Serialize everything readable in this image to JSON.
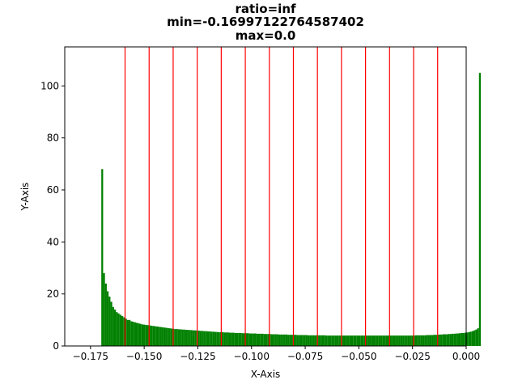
{
  "chart_data": {
    "type": "bar",
    "title_lines": [
      "ratio=inf",
      "min=-0.16997122764587402",
      "max=0.0"
    ],
    "xlabel": "X-Axis",
    "ylabel": "Y-Axis",
    "xlim": [
      -0.187,
      0.0
    ],
    "ylim": [
      0,
      115
    ],
    "x_ticks": [
      -0.175,
      -0.15,
      -0.125,
      -0.1,
      -0.075,
      -0.05,
      -0.025,
      0.0
    ],
    "x_tick_labels": [
      "−0.175",
      "−0.150",
      "−0.125",
      "−0.100",
      "−0.075",
      "−0.050",
      "−0.025",
      "0.000"
    ],
    "y_ticks": [
      0,
      20,
      40,
      60,
      80,
      100
    ],
    "y_tick_labels": [
      "0",
      "20",
      "40",
      "60",
      "80",
      "100"
    ],
    "grid": false,
    "bar_color": "#008000",
    "vline_color": "#ff0000",
    "histogram": {
      "x_min": -0.16997122764587402,
      "x_max": 0.0,
      "bins": 200,
      "counts": [
        68,
        28,
        24,
        21,
        19,
        17,
        15,
        14,
        13,
        12.5,
        12,
        11.5,
        11,
        10.5,
        10,
        10,
        9.5,
        9.3,
        9.1,
        8.9,
        8.7,
        8.5,
        8.3,
        8.2,
        8.1,
        8,
        7.9,
        7.8,
        7.7,
        7.6,
        7.5,
        7.4,
        7.3,
        7.2,
        7.1,
        7,
        6.9,
        6.8,
        6.7,
        6.6,
        6.5,
        6.5,
        6.4,
        6.4,
        6.3,
        6.3,
        6.2,
        6.2,
        6.1,
        6.1,
        6,
        6,
        5.9,
        5.9,
        5.8,
        5.8,
        5.7,
        5.7,
        5.6,
        5.6,
        5.5,
        5.5,
        5.4,
        5.4,
        5.3,
        5.3,
        5.3,
        5.2,
        5.2,
        5.2,
        5.1,
        5.1,
        5.1,
        5,
        5,
        5,
        5,
        4.9,
        4.9,
        4.9,
        4.9,
        4.8,
        4.8,
        4.8,
        4.8,
        4.7,
        4.7,
        4.7,
        4.7,
        4.6,
        4.6,
        4.6,
        4.6,
        4.5,
        4.5,
        4.5,
        4.5,
        4.4,
        4.4,
        4.4,
        4.4,
        4.4,
        4.3,
        4.3,
        4.3,
        4.3,
        4.3,
        4.2,
        4.2,
        4.2,
        4.2,
        4.2,
        4.2,
        4.1,
        4.1,
        4.1,
        4.1,
        4.1,
        4.1,
        4.1,
        4.1,
        4.1,
        4.1,
        4,
        4,
        4,
        4,
        4,
        4,
        4,
        4,
        4,
        4,
        4,
        4,
        4,
        4,
        4,
        4,
        4,
        4,
        4,
        4,
        4,
        4,
        4,
        4,
        4,
        4,
        4,
        4,
        4,
        4,
        4,
        4,
        4,
        4,
        4,
        4,
        4,
        4,
        4,
        4,
        4,
        4,
        4,
        4,
        4,
        4,
        4,
        4,
        4,
        4.1,
        4.1,
        4.1,
        4.1,
        4.1,
        4.1,
        4.2,
        4.2,
        4.2,
        4.2,
        4.3,
        4.3,
        4.3,
        4.4,
        4.4,
        4.5,
        4.5,
        4.5,
        4.6,
        4.6,
        4.7,
        4.7,
        4.8,
        4.8,
        4.9,
        5,
        5,
        5.1,
        5.2,
        5.3,
        5.5,
        5.7,
        6,
        6.3,
        6.8,
        105
      ]
    },
    "vlines": [
      -0.1589,
      -0.1477,
      -0.1365,
      -0.1253,
      -0.1141,
      -0.1029,
      -0.0917,
      -0.0805,
      -0.0693,
      -0.0581,
      -0.0469,
      -0.0357,
      -0.0245,
      -0.0133
    ]
  }
}
